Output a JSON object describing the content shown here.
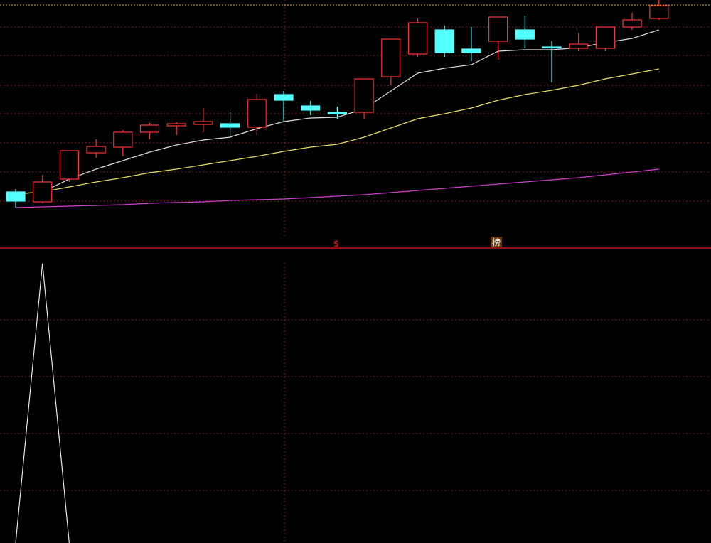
{
  "chart_data": [
    {
      "type": "candlestick",
      "categories": [
        null,
        null,
        null,
        null,
        null,
        null,
        null,
        null,
        null,
        null,
        null,
        null,
        null,
        null,
        null,
        null,
        null,
        null,
        null,
        null,
        null,
        null,
        null,
        null,
        null
      ],
      "open": [
        80,
        66,
        98,
        135,
        143,
        164,
        173,
        175,
        176,
        171,
        217,
        201,
        192,
        192,
        242,
        274,
        308,
        281,
        292,
        308,
        284,
        282,
        282,
        312,
        324
      ],
      "close": [
        67,
        94,
        138,
        144,
        164,
        174,
        176,
        179,
        171,
        210,
        209,
        195,
        190,
        239,
        295,
        318,
        276,
        276,
        326,
        295,
        283,
        288,
        312,
        322,
        342
      ],
      "high": [
        84,
        104,
        138,
        154,
        167,
        177,
        178,
        198,
        192,
        218,
        222,
        208,
        200,
        239,
        295,
        324,
        314,
        312,
        326,
        328,
        292,
        304,
        312,
        332,
        350
      ],
      "low": [
        58,
        64,
        94,
        128,
        130,
        154,
        160,
        164,
        158,
        160,
        180,
        188,
        182,
        182,
        230,
        270,
        270,
        264,
        266,
        282,
        234,
        278,
        278,
        308,
        322
      ],
      "up_color": "#ff3232",
      "down_color": "#54ffff",
      "series": [
        {
          "color": "#dcdcdc",
          "values": [
            77,
            80,
            98,
            112,
            124,
            136,
            146,
            153,
            157,
            169,
            179,
            184,
            185,
            197,
            222,
            247,
            254,
            259,
            278,
            280,
            280,
            283,
            290,
            296,
            308
          ]
        },
        {
          "color": "#e8e060",
          "values": [
            77,
            80,
            87,
            94,
            100,
            107,
            112,
            118,
            124,
            130,
            137,
            143,
            147,
            157,
            170,
            183,
            190,
            198,
            209,
            217,
            223,
            230,
            239,
            246,
            253
          ]
        },
        {
          "color": "#d040d0",
          "values": [
            58,
            59,
            60,
            61,
            62,
            64,
            65,
            66,
            68,
            69,
            70,
            72,
            74,
            76,
            79,
            82,
            85,
            88,
            91,
            94,
            97,
            100,
            104,
            108,
            112
          ]
        }
      ],
      "ylim": [
        0,
        350
      ],
      "annotations": [
        "$",
        "榜"
      ]
    },
    {
      "type": "line",
      "values": [
        0,
        95,
        0
      ],
      "color": "#e8e8e8",
      "ylim": [
        0,
        100
      ]
    }
  ]
}
